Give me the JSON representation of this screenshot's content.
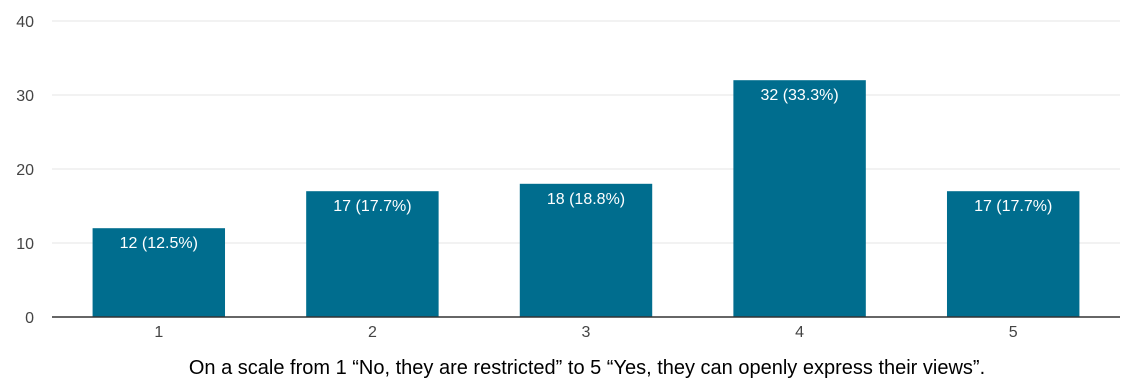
{
  "chart_data": {
    "type": "bar",
    "categories": [
      "1",
      "2",
      "3",
      "4",
      "5"
    ],
    "values": [
      12,
      17,
      18,
      32,
      17
    ],
    "data_labels": [
      "12 (12.5%)",
      "17 (17.7%)",
      "18 (18.8%)",
      "32 (33.3%)",
      "17 (17.7%)"
    ],
    "y_ticks": [
      "0",
      "10",
      "20",
      "30",
      "40"
    ],
    "ylim": [
      0,
      40
    ],
    "xlabel": "On a scale from 1 “No, they are restricted” to 5 “Yes, they can openly express their views”.",
    "ylabel": "",
    "title": "",
    "grid": true,
    "colors": {
      "bar": "#006d8e",
      "grid": "#e6e6e6",
      "axis": "#333333",
      "tick_text": "#444444",
      "label_text": "#ffffff"
    }
  }
}
